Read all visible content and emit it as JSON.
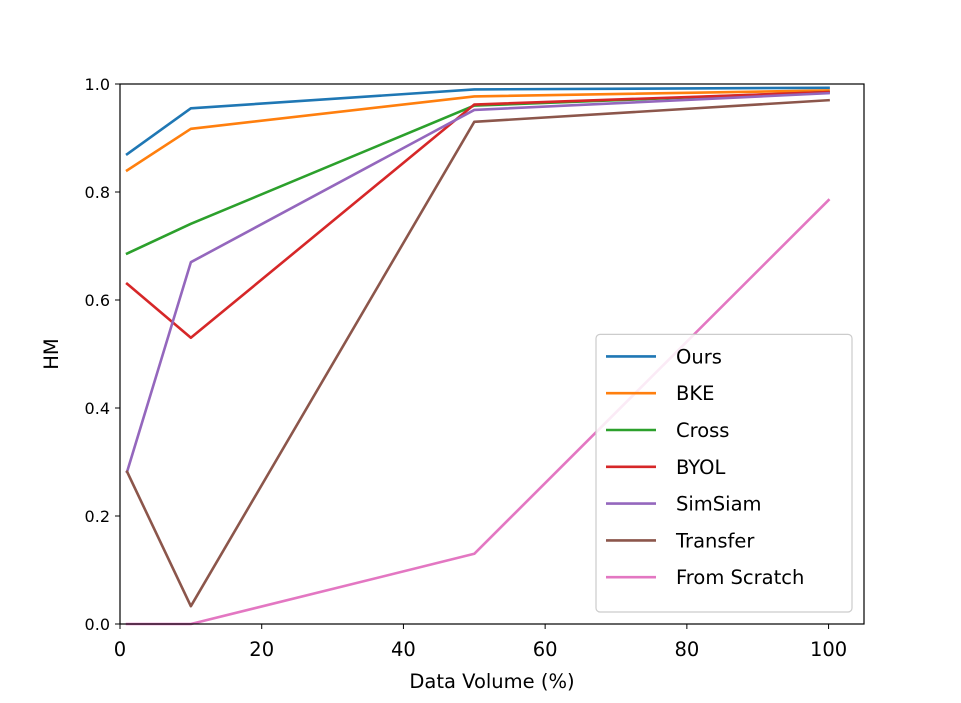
{
  "chart_data": {
    "type": "line",
    "title": "",
    "xlabel": "Data Volume (%)",
    "ylabel": "HM",
    "xlim": [
      0,
      105
    ],
    "ylim": [
      0.0,
      1.0
    ],
    "xticks": [
      0,
      20,
      40,
      60,
      80,
      100
    ],
    "yticks": [
      0.0,
      0.2,
      0.4,
      0.6,
      0.8,
      1.0
    ],
    "xtick_labels": [
      "0",
      "20",
      "40",
      "60",
      "80",
      "100"
    ],
    "ytick_labels": [
      "0.0",
      "0.2",
      "0.4",
      "0.6",
      "0.8",
      "1.0"
    ],
    "grid": false,
    "legend_position": "lower-right",
    "x": [
      1,
      10,
      50,
      100
    ],
    "series": [
      {
        "name": "Ours",
        "color": "#1f77b4",
        "values": [
          0.87,
          0.955,
          0.99,
          0.993
        ]
      },
      {
        "name": "BKE",
        "color": "#ff7f0e",
        "values": [
          0.84,
          0.917,
          0.977,
          0.988
        ]
      },
      {
        "name": "Cross",
        "color": "#2ca02c",
        "values": [
          0.686,
          0.741,
          0.96,
          0.985
        ]
      },
      {
        "name": "BYOL",
        "color": "#d62728",
        "values": [
          0.63,
          0.53,
          0.962,
          0.985
        ]
      },
      {
        "name": "SimSiam",
        "color": "#9467bd",
        "values": [
          0.282,
          0.67,
          0.952,
          0.983
        ]
      },
      {
        "name": "Transfer",
        "color": "#8c564b",
        "values": [
          0.282,
          0.033,
          0.93,
          0.97
        ]
      },
      {
        "name": "From Scratch",
        "color": "#e377c2",
        "values": [
          0.0,
          0.0,
          0.13,
          0.785
        ]
      }
    ]
  }
}
